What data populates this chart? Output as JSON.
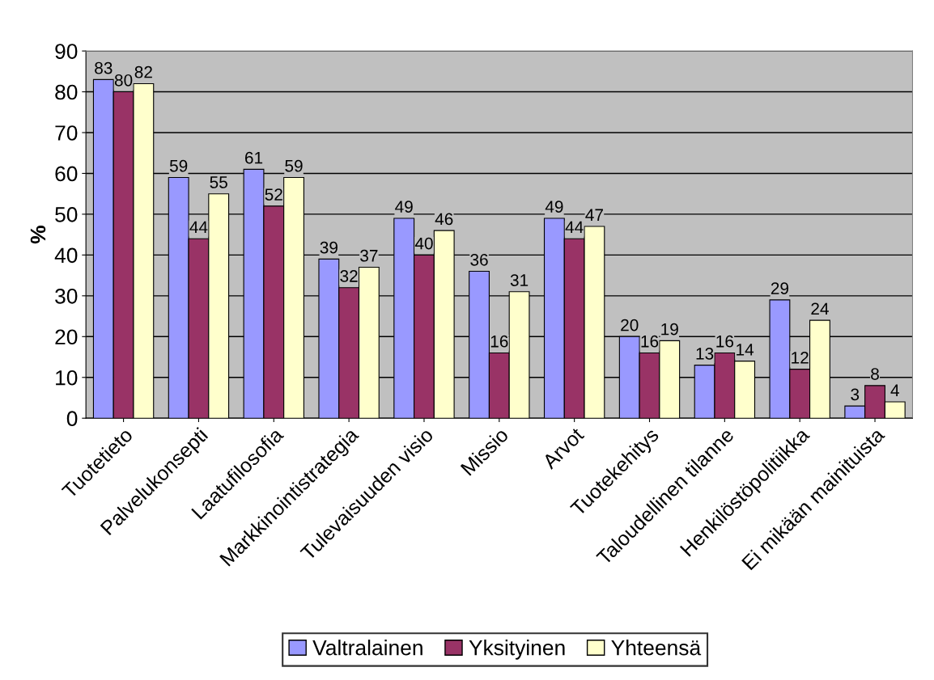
{
  "chart_data": {
    "type": "bar",
    "ylabel": "%",
    "categories": [
      "Tuotetieto",
      "Palvelukonsepti",
      "Laatufilosofia",
      "Markkinointistrategia",
      "Tulevaisuuden visio",
      "Missio",
      "Arvot",
      "Tuotekehitys",
      "Taloudellinen tilanne",
      "Henkilöstöpolitiikka",
      "Ei mikään mainituista"
    ],
    "series": [
      {
        "name": "Valtralainen",
        "color": "#9999ff",
        "values": [
          83,
          59,
          61,
          39,
          49,
          36,
          49,
          20,
          13,
          29,
          3
        ]
      },
      {
        "name": "Yksityinen",
        "color": "#993366",
        "values": [
          80,
          44,
          52,
          32,
          40,
          16,
          44,
          16,
          16,
          12,
          8
        ]
      },
      {
        "name": "Yhteensä",
        "color": "#ffffcc",
        "values": [
          82,
          55,
          59,
          37,
          46,
          31,
          47,
          19,
          14,
          24,
          4
        ]
      }
    ],
    "ylim": [
      0,
      90
    ],
    "yticks": [
      0,
      10,
      20,
      30,
      40,
      50,
      60,
      70,
      80,
      90
    ],
    "grid": "y",
    "legend": "bottom",
    "data_labels": true
  }
}
